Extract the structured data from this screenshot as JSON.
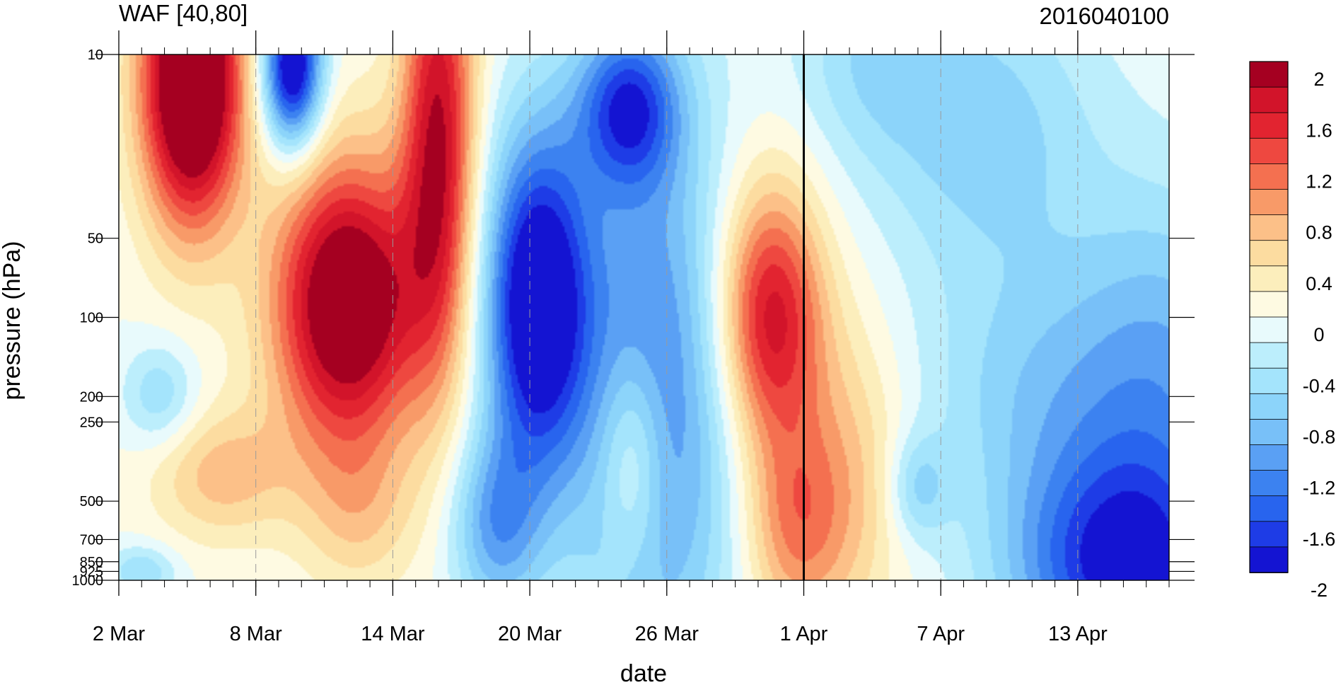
{
  "chart_data": {
    "type": "heatmap",
    "title": "WAF [40,80]",
    "right_title": "2016040100",
    "xlabel": "date",
    "ylabel": "pressure (hPa)",
    "x_tick_labels": [
      "2 Mar",
      "8 Mar",
      "14 Mar",
      "20 Mar",
      "26 Mar",
      "1 Apr",
      "7 Apr",
      "13 Apr"
    ],
    "x_range": [
      "2016-03-02",
      "2016-04-17"
    ],
    "y_scale": "log",
    "y_reversed": true,
    "y_range": [
      1000,
      10
    ],
    "y_tick_labels": [
      "10",
      "50",
      "100",
      "200",
      "250",
      "500",
      "700",
      "850",
      "925",
      "1000"
    ],
    "y_levels": [
      1000,
      925,
      850,
      700,
      500,
      250,
      200,
      100,
      50,
      10
    ],
    "vertical_line_date": "2016-04-01",
    "grid": "dashed vertical lines at labeled dates",
    "colorbar": {
      "placement": "right",
      "levels": [
        -2.0,
        -1.8,
        -1.6,
        -1.4,
        -1.2,
        -1.0,
        -0.8,
        -0.6,
        -0.4,
        -0.2,
        0.0,
        0.2,
        0.4,
        0.6,
        0.8,
        1.0,
        1.2,
        1.4,
        1.6,
        1.8,
        2.0
      ],
      "tick_labels": [
        "2",
        "1.6",
        "1.2",
        "0.8",
        "0.4",
        "0",
        "-0.4",
        "-0.8",
        "-1.2",
        "-1.6",
        "-2"
      ],
      "colors": [
        "#1414d2",
        "#1e3ce6",
        "#2864ee",
        "#3c82f0",
        "#5aa0f4",
        "#78c0f8",
        "#8cd4fa",
        "#a4e4fc",
        "#bceefc",
        "#e8fafc",
        "#fefae2",
        "#fceebc",
        "#fcdca0",
        "#fcc088",
        "#f89a68",
        "#f47050",
        "#ee4840",
        "#e22430",
        "#d2142a",
        "#a50021"
      ]
    }
  }
}
